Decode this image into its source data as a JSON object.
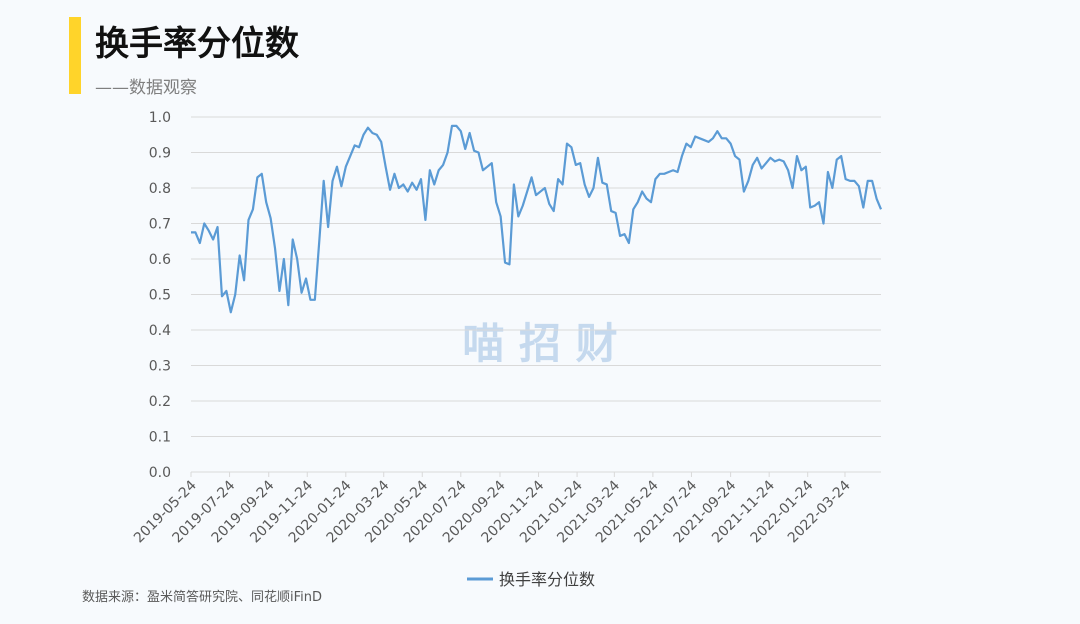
{
  "chart_data": {
    "type": "line",
    "title": "换手率分位数",
    "subtitle": "——数据观察",
    "watermark": "喵  招  财",
    "source": "数据来源：盈米简答研究院、同花顺iFinD",
    "x": [
      "2019-05-24",
      "2019-05-31",
      "2019-06-07",
      "2019-06-14",
      "2019-06-21",
      "2019-06-28",
      "2019-07-05",
      "2019-07-12",
      "2019-07-19",
      "2019-07-26",
      "2019-08-02",
      "2019-08-09",
      "2019-08-16",
      "2019-08-23",
      "2019-08-30",
      "2019-09-06",
      "2019-09-13",
      "2019-09-20",
      "2019-09-27",
      "2019-10-04",
      "2019-10-11",
      "2019-10-18",
      "2019-10-25",
      "2019-11-01",
      "2019-11-08",
      "2019-11-15",
      "2019-11-22",
      "2019-11-29",
      "2019-12-06",
      "2019-12-13",
      "2019-12-20",
      "2019-12-27",
      "2020-01-03",
      "2020-01-10",
      "2020-01-17",
      "2020-01-24",
      "2020-01-31",
      "2020-02-07",
      "2020-02-14",
      "2020-02-21",
      "2020-02-28",
      "2020-03-06",
      "2020-03-13",
      "2020-03-20",
      "2020-03-27",
      "2020-04-03",
      "2020-04-10",
      "2020-04-17",
      "2020-04-24",
      "2020-05-01",
      "2020-05-08",
      "2020-05-15",
      "2020-05-22",
      "2020-05-29",
      "2020-06-05",
      "2020-06-12",
      "2020-06-19",
      "2020-06-26",
      "2020-07-03",
      "2020-07-10",
      "2020-07-17",
      "2020-07-24",
      "2020-07-31",
      "2020-08-07",
      "2020-08-14",
      "2020-08-21",
      "2020-08-28",
      "2020-09-04",
      "2020-09-11",
      "2020-09-18",
      "2020-09-25",
      "2020-10-02",
      "2020-10-09",
      "2020-10-16",
      "2020-10-23",
      "2020-10-30",
      "2020-11-06",
      "2020-11-13",
      "2020-11-20",
      "2020-11-27",
      "2020-12-04",
      "2020-12-11",
      "2020-12-18",
      "2020-12-25",
      "2021-01-01",
      "2021-01-08",
      "2021-01-15",
      "2021-01-22",
      "2021-01-29",
      "2021-02-05",
      "2021-02-12",
      "2021-02-19",
      "2021-02-26",
      "2021-03-05",
      "2021-03-12",
      "2021-03-19",
      "2021-03-26",
      "2021-04-02",
      "2021-04-09",
      "2021-04-16",
      "2021-04-23",
      "2021-04-30",
      "2021-05-07",
      "2021-05-14",
      "2021-05-21",
      "2021-05-28",
      "2021-06-04",
      "2021-06-11",
      "2021-06-18",
      "2021-06-25",
      "2021-07-02",
      "2021-07-09",
      "2021-07-16",
      "2021-07-23",
      "2021-07-30",
      "2021-08-06",
      "2021-08-13",
      "2021-08-20",
      "2021-08-27",
      "2021-09-03",
      "2021-09-10",
      "2021-09-17",
      "2021-09-24",
      "2021-10-01",
      "2021-10-08",
      "2021-10-15",
      "2021-10-22",
      "2021-10-29",
      "2021-11-05",
      "2021-11-12",
      "2021-11-19",
      "2021-11-26",
      "2021-12-03",
      "2021-12-10",
      "2021-12-17",
      "2021-12-24",
      "2021-12-31",
      "2022-01-07",
      "2022-01-14",
      "2022-01-21",
      "2022-01-28",
      "2022-02-04",
      "2022-02-11",
      "2022-02-18",
      "2022-02-25",
      "2022-03-04",
      "2022-03-11",
      "2022-03-18",
      "2022-03-25",
      "2022-04-01",
      "2022-04-08",
      "2022-04-15",
      "2022-04-22",
      "2022-04-29",
      "2022-05-06",
      "2022-05-13",
      "2022-05-20"
    ],
    "series": [
      {
        "name": "换手率分位数",
        "color": "#5b9bd5",
        "values": [
          0.675,
          0.675,
          0.645,
          0.7,
          0.68,
          0.655,
          0.69,
          0.495,
          0.51,
          0.45,
          0.5,
          0.61,
          0.54,
          0.71,
          0.74,
          0.83,
          0.84,
          0.76,
          0.715,
          0.63,
          0.51,
          0.6,
          0.47,
          0.655,
          0.6,
          0.505,
          0.545,
          0.485,
          0.485,
          0.65,
          0.82,
          0.69,
          0.82,
          0.86,
          0.805,
          0.86,
          0.89,
          0.92,
          0.915,
          0.95,
          0.97,
          0.955,
          0.95,
          0.93,
          0.86,
          0.795,
          0.84,
          0.8,
          0.81,
          0.79,
          0.815,
          0.795,
          0.825,
          0.71,
          0.85,
          0.81,
          0.85,
          0.865,
          0.9,
          0.975,
          0.975,
          0.96,
          0.91,
          0.955,
          0.905,
          0.9,
          0.85,
          0.86,
          0.87,
          0.76,
          0.72,
          0.59,
          0.585,
          0.81,
          0.72,
          0.75,
          0.79,
          0.83,
          0.78,
          0.79,
          0.8,
          0.755,
          0.735,
          0.825,
          0.81,
          0.925,
          0.915,
          0.865,
          0.87,
          0.81,
          0.775,
          0.8,
          0.885,
          0.815,
          0.81,
          0.735,
          0.73,
          0.665,
          0.67,
          0.645,
          0.74,
          0.76,
          0.79,
          0.77,
          0.76,
          0.825,
          0.84,
          0.84,
          0.845,
          0.85,
          0.845,
          0.89,
          0.925,
          0.915,
          0.945,
          0.94,
          0.935,
          0.93,
          0.94,
          0.96,
          0.94,
          0.94,
          0.925,
          0.89,
          0.88,
          0.79,
          0.82,
          0.865,
          0.885,
          0.855,
          0.87,
          0.885,
          0.875,
          0.88,
          0.875,
          0.85,
          0.8,
          0.89,
          0.85,
          0.86,
          0.745,
          0.75,
          0.76,
          0.7,
          0.845,
          0.8,
          0.88,
          0.89,
          0.825,
          0.82,
          0.82,
          0.805,
          0.745,
          0.82,
          0.82,
          0.77,
          0.74
        ]
      }
    ],
    "xlim": [
      "2019-05-24",
      "2022-05-20"
    ],
    "xticks": [
      "2019-05-24",
      "2019-07-24",
      "2019-09-24",
      "2019-11-24",
      "2020-01-24",
      "2020-03-24",
      "2020-05-24",
      "2020-07-24",
      "2020-09-24",
      "2020-11-24",
      "2021-01-24",
      "2021-03-24",
      "2021-05-24",
      "2021-07-24",
      "2021-09-24",
      "2021-11-24",
      "2022-01-24",
      "2022-03-24"
    ],
    "ylim": [
      0,
      1
    ],
    "yticks": [
      {
        "value": 0,
        "label": "0.0"
      },
      0.1,
      0.2,
      0.3,
      0.4,
      0.5,
      0.6,
      0.7,
      0.8,
      0.9,
      {
        "value": 1,
        "label": "1.0"
      }
    ],
    "grid": true,
    "legend": "bottom"
  }
}
